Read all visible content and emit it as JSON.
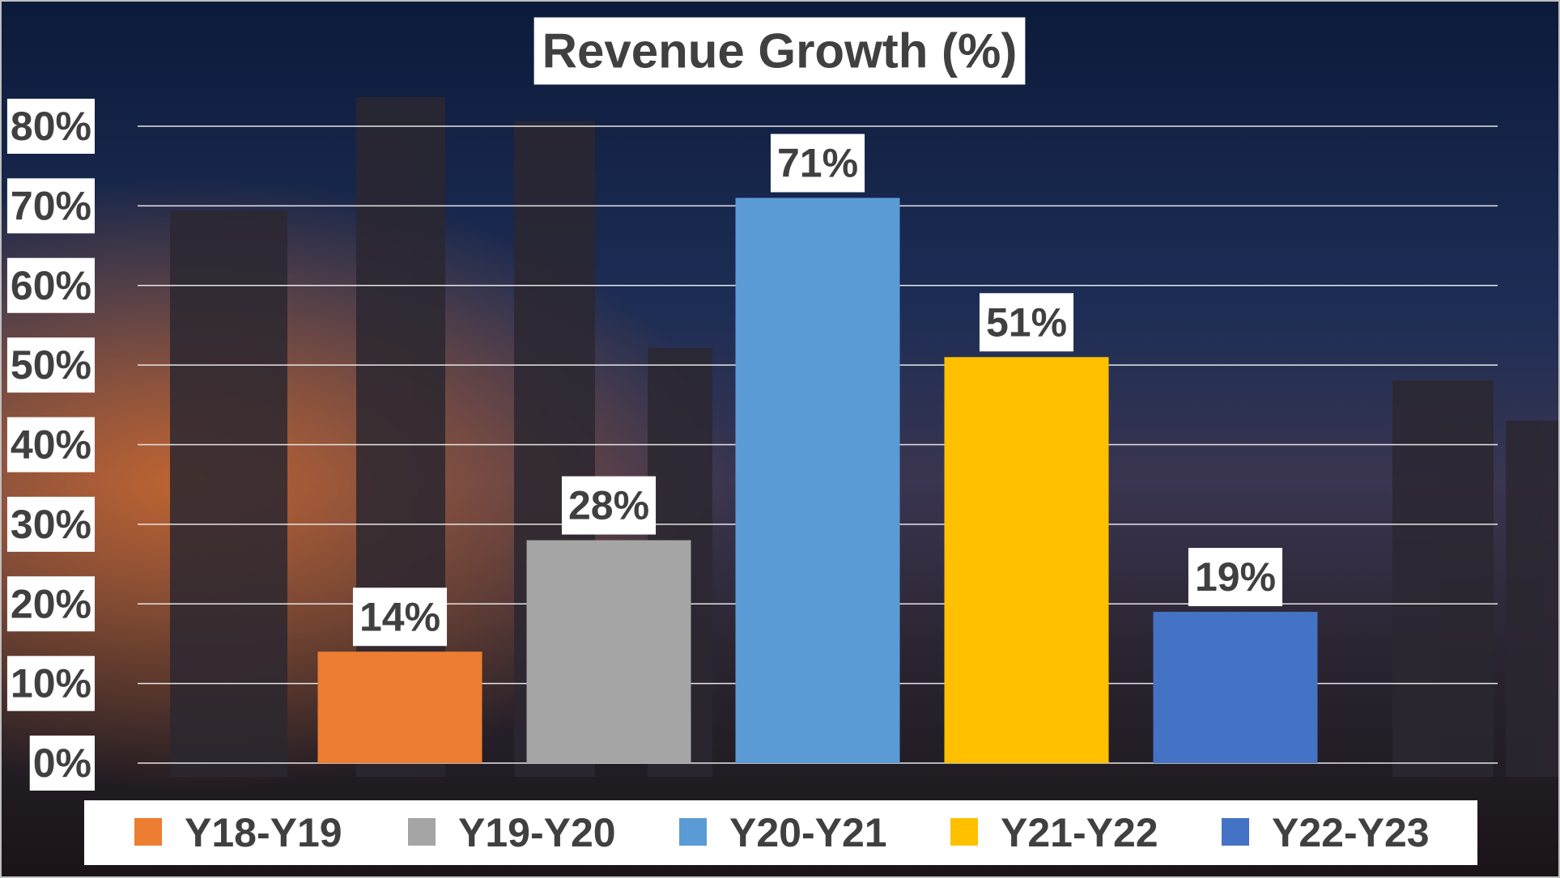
{
  "chart_data": {
    "type": "bar",
    "title": "Revenue Growth (%)",
    "categories": [
      null
    ],
    "series": [
      {
        "name": "Y18-Y19",
        "color": "#ed7d31",
        "values": [
          14
        ],
        "value_labels": [
          "14%"
        ]
      },
      {
        "name": "Y19-Y20",
        "color": "#a5a5a5",
        "values": [
          28
        ],
        "value_labels": [
          "28%"
        ]
      },
      {
        "name": "Y20-Y21",
        "color": "#5b9bd5",
        "values": [
          71
        ],
        "value_labels": [
          "71%"
        ]
      },
      {
        "name": "Y21-Y22",
        "color": "#ffc000",
        "values": [
          51
        ],
        "value_labels": [
          "51%"
        ]
      },
      {
        "name": "Y22-Y23",
        "color": "#4472c4",
        "values": [
          19
        ],
        "value_labels": [
          "19%"
        ]
      }
    ],
    "ylim": [
      0,
      80
    ],
    "yticks": [
      {
        "value": 0,
        "label": "0%"
      },
      {
        "value": 10,
        "label": "10%"
      },
      {
        "value": 20,
        "label": "20%"
      },
      {
        "value": 30,
        "label": "30%"
      },
      {
        "value": 40,
        "label": "40%"
      },
      {
        "value": 50,
        "label": "50%"
      },
      {
        "value": 60,
        "label": "60%"
      },
      {
        "value": 70,
        "label": "70%"
      },
      {
        "value": 80,
        "label": "80%"
      }
    ],
    "grid": true,
    "legend": "bottom"
  }
}
